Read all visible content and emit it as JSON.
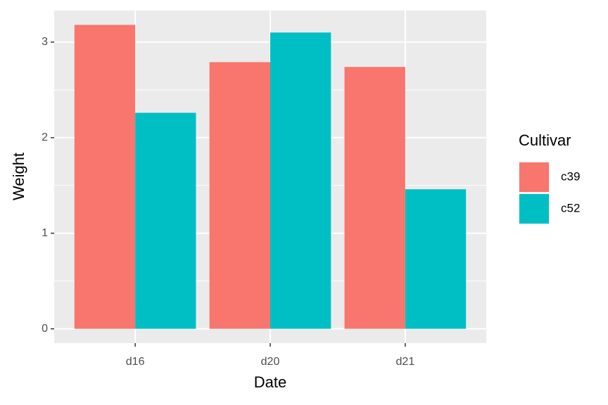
{
  "chart_data": {
    "type": "bar",
    "x_label": "Date",
    "y_label": "Weight",
    "categories": [
      "d16",
      "d20",
      "d21"
    ],
    "legend_title": "Cultivar",
    "series": [
      {
        "name": "c39",
        "color": "#f8766d",
        "values": [
          3.18,
          2.79,
          2.74
        ]
      },
      {
        "name": "c52",
        "color": "#00bfc4",
        "values": [
          2.26,
          3.1,
          1.46
        ]
      }
    ],
    "ylim": [
      -0.15,
      3.33
    ],
    "yticks": [
      0,
      1,
      2,
      3
    ],
    "minor_yticks": [
      0.5,
      1.5,
      2.5
    ],
    "grid": true,
    "legend_position": "right"
  }
}
